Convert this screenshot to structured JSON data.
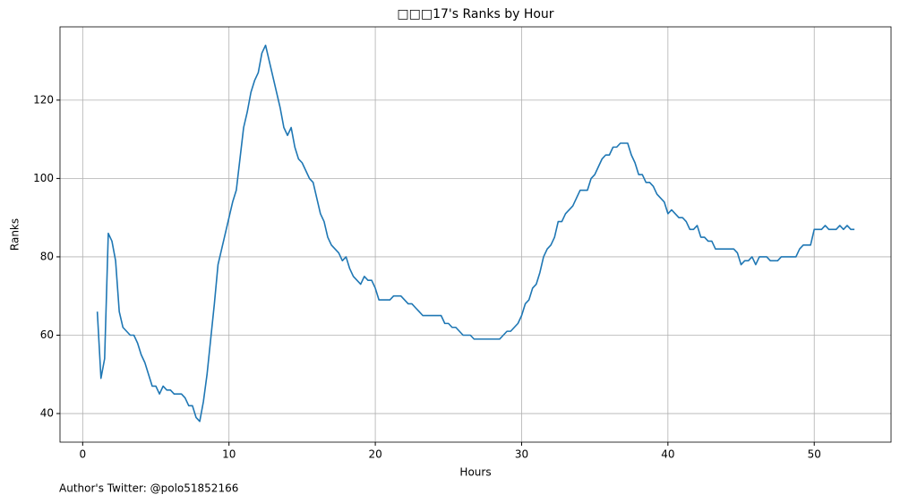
{
  "chart_data": {
    "type": "line",
    "title": "□□□17's Ranks by Hour",
    "xlabel": "Hours",
    "ylabel": "Ranks",
    "footnote": "Author's Twitter: @polo51852166",
    "grid": true,
    "xlim": [
      -1.55,
      55.25
    ],
    "ylim": [
      32.7,
      138.7
    ],
    "xticks": [
      0,
      10,
      20,
      30,
      40,
      50
    ],
    "yticks": [
      40,
      60,
      80,
      100,
      120
    ],
    "x": [
      1,
      1.25,
      1.5,
      1.75,
      2,
      2.25,
      2.5,
      2.75,
      3,
      3.25,
      3.5,
      3.75,
      4,
      4.25,
      4.5,
      4.75,
      5,
      5.25,
      5.5,
      5.75,
      6,
      6.25,
      6.75,
      7,
      7.25,
      7.5,
      7.75,
      8,
      8.25,
      8.5,
      8.75,
      9,
      9.25,
      9.5,
      9.75,
      10,
      10.25,
      10.5,
      10.75,
      11,
      11.25,
      11.5,
      11.75,
      12,
      12.25,
      12.5,
      12.75,
      13,
      13.25,
      13.5,
      13.75,
      14,
      14.25,
      14.5,
      14.75,
      15,
      15.25,
      15.5,
      15.75,
      16,
      16.25,
      16.5,
      16.75,
      17,
      17.25,
      17.5,
      17.75,
      18,
      18.25,
      18.5,
      18.75,
      19,
      19.25,
      19.5,
      19.75,
      20,
      20.25,
      20.5,
      21,
      21.25,
      21.75,
      22,
      22.25,
      22.5,
      22.75,
      23,
      23.25,
      24.5,
      24.75,
      25,
      25.25,
      25.5,
      25.75,
      26,
      26.5,
      26.75,
      28.5,
      28.75,
      29,
      29.25,
      29.5,
      29.75,
      30,
      30.25,
      30.5,
      30.75,
      31,
      31.25,
      31.5,
      31.75,
      32,
      32.25,
      32.5,
      32.75,
      33,
      33.25,
      33.5,
      33.75,
      34,
      34.5,
      34.75,
      35,
      35.25,
      35.5,
      35.75,
      36,
      36.25,
      36.5,
      36.75,
      37.25,
      37.5,
      37.75,
      38,
      38.25,
      38.5,
      38.75,
      39,
      39.25,
      39.5,
      39.75,
      40,
      40.25,
      40.5,
      40.75,
      41,
      41.25,
      41.5,
      41.75,
      42,
      42.25,
      42.5,
      42.75,
      43,
      43.25,
      44.5,
      44.75,
      45,
      45.25,
      45.5,
      45.75,
      46,
      46.25,
      46.75,
      47,
      47.5,
      47.75,
      48.75,
      49,
      49.25,
      49.75,
      50,
      50.5,
      50.75,
      51,
      51.5,
      51.75,
      52,
      52.25,
      52.5,
      52.75
    ],
    "series": [
      {
        "name": "Ranks",
        "color": "#1f77b4",
        "values": [
          66,
          49,
          54,
          86,
          84,
          79,
          66,
          62,
          61,
          60,
          60,
          58,
          55,
          53,
          50,
          47,
          47,
          45,
          47,
          46,
          46,
          45,
          45,
          44,
          42,
          42,
          39,
          38,
          43,
          50,
          59,
          68,
          78,
          82,
          86,
          90,
          94,
          97,
          105,
          113,
          117,
          122,
          125,
          127,
          132,
          134,
          130,
          126,
          122,
          118,
          113,
          111,
          113,
          108,
          105,
          104,
          102,
          100,
          99,
          95,
          91,
          89,
          85,
          83,
          82,
          81,
          79,
          80,
          77,
          75,
          74,
          73,
          75,
          74,
          74,
          72,
          69,
          69,
          69,
          70,
          70,
          69,
          68,
          68,
          67,
          66,
          65,
          65,
          63,
          63,
          62,
          62,
          61,
          60,
          60,
          59,
          59,
          60,
          61,
          61,
          62,
          63,
          65,
          68,
          69,
          72,
          73,
          76,
          80,
          82,
          83,
          85,
          89,
          89,
          91,
          92,
          93,
          95,
          97,
          97,
          100,
          101,
          103,
          105,
          106,
          106,
          108,
          108,
          109,
          109,
          106,
          104,
          101,
          101,
          99,
          99,
          98,
          96,
          95,
          94,
          91,
          92,
          91,
          90,
          90,
          89,
          87,
          87,
          88,
          85,
          85,
          84,
          84,
          82,
          82,
          81,
          78,
          79,
          79,
          80,
          78,
          80,
          80,
          79,
          79,
          80,
          80,
          82,
          83,
          83,
          87,
          87,
          88,
          87,
          87,
          88,
          87,
          88,
          87,
          87
        ]
      }
    ]
  }
}
